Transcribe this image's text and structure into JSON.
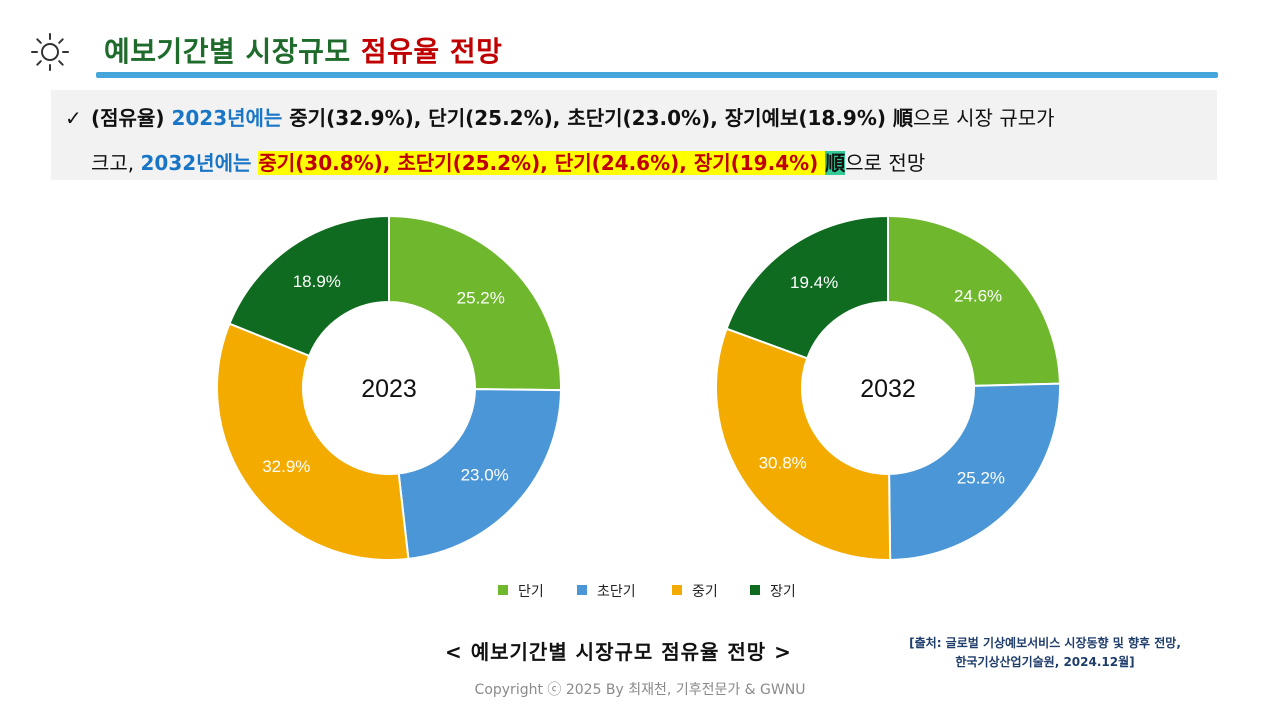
{
  "header": {
    "title_main": "예보기간별 시장규모 ",
    "title_accent": "점유율 전망",
    "icon": "sun-icon"
  },
  "summary": {
    "check": "✓",
    "l1_a": "(점유율) ",
    "l1_b": "2023년에는 ",
    "l1_c": "중기(32.9%), 단기(25.2%), 초단기(23.0%), 장기예보(18.9%) 順",
    "l1_d": "으로 시장 규모가",
    "l2_a": "크고, ",
    "l2_b": "2032년에는 ",
    "l2_c": "중기(30.8%), 초단기(25.2%), 단기(24.6%), 장기(19.4%) ",
    "l2_d": "順",
    "l2_e": "으로 전망"
  },
  "colors": {
    "단기": "#6fb82d",
    "초단기": "#4a96d6",
    "중기": "#f4ab00",
    "장기": "#0f6b1f"
  },
  "chart_data": [
    {
      "type": "pie",
      "title": "2023",
      "categories": [
        "단기",
        "초단기",
        "중기",
        "장기"
      ],
      "values": [
        25.2,
        23.0,
        32.9,
        18.9
      ],
      "labels": [
        "25.2%",
        "23.0%",
        "32.9%",
        "18.9%"
      ]
    },
    {
      "type": "pie",
      "title": "2032",
      "categories": [
        "단기",
        "초단기",
        "중기",
        "장기"
      ],
      "values": [
        24.6,
        25.2,
        30.8,
        19.4
      ],
      "labels": [
        "24.6%",
        "25.2%",
        "30.8%",
        "19.4%"
      ]
    }
  ],
  "legend": [
    "단기",
    "초단기",
    "중기",
    "장기"
  ],
  "caption": "< 예보기간별 시장규모 점유율 전망 >",
  "source": {
    "line1": "[출처: 글로벌 기상예보서비스 시장동향 및 향후 전망,",
    "line2": "한국기상산업기술원, 2024.12월]"
  },
  "copyright": "Copyright ⓒ 2025 By 최재천, 기후전문가 & GWNU"
}
